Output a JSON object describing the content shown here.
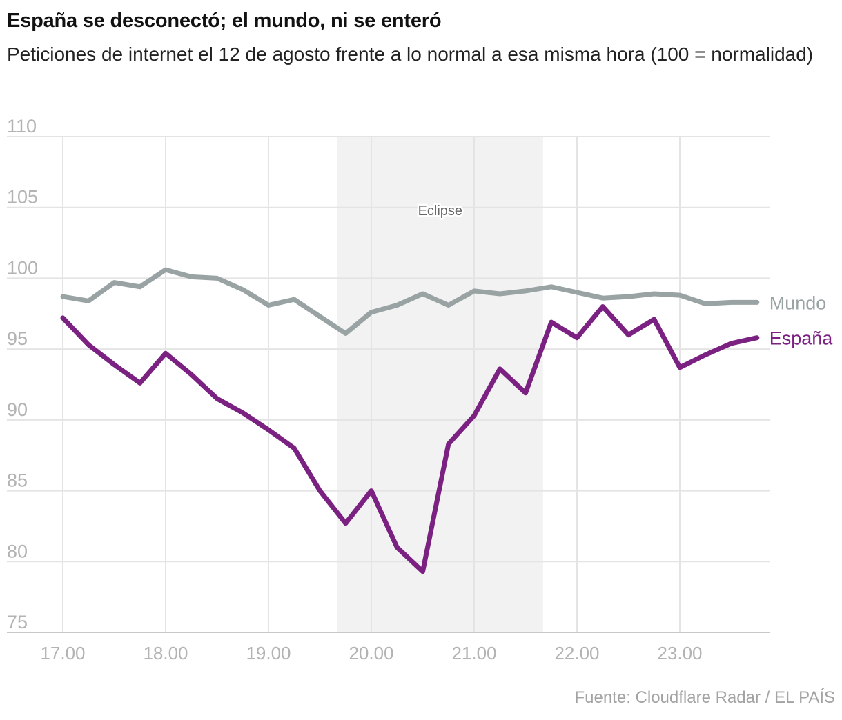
{
  "header": {
    "title": "España se desconectó; el mundo, ni se enteró",
    "subtitle": "Peticiones de internet el 12 de agosto frente a lo normal a esa misma hora (100 = normalidad)"
  },
  "footer": {
    "source": "Fuente: Cloudflare Radar / EL PAÍS"
  },
  "chart_data": {
    "type": "line",
    "title": "España se desconectó; el mundo, ni se enteró",
    "subtitle": "Peticiones de internet el 12 de agosto frente a lo normal a esa misma hora (100 = normalidad)",
    "xlabel": "",
    "ylabel": "",
    "x": [
      17.0,
      17.25,
      17.5,
      17.75,
      18.0,
      18.25,
      18.5,
      18.75,
      19.0,
      19.25,
      19.5,
      19.75,
      20.0,
      20.25,
      20.5,
      20.75,
      21.0,
      21.25,
      21.5,
      21.75,
      22.0,
      22.25,
      22.5,
      22.75,
      23.0,
      23.25,
      23.5,
      23.75
    ],
    "xticks": [
      17,
      18,
      19,
      20,
      21,
      22,
      23
    ],
    "xtick_labels": [
      "17.00",
      "18.00",
      "19.00",
      "20.00",
      "21.00",
      "22.00",
      "23.00"
    ],
    "xlim": [
      16.5,
      23.95
    ],
    "ylim": [
      75,
      110
    ],
    "yticks": [
      75,
      80,
      85,
      90,
      95,
      100,
      105,
      110
    ],
    "ytick_labels": [
      "75",
      "80",
      "85",
      "90",
      "95",
      "100",
      "105",
      "110"
    ],
    "grid": true,
    "series": [
      {
        "name": "Mundo",
        "color": "#9aa3a3",
        "values": [
          98.7,
          98.4,
          99.7,
          99.4,
          100.6,
          100.1,
          100.0,
          99.2,
          98.1,
          98.5,
          97.3,
          96.1,
          97.6,
          98.1,
          98.9,
          98.1,
          99.1,
          98.9,
          99.1,
          99.4,
          99.0,
          98.6,
          98.7,
          98.9,
          98.8,
          98.2,
          98.3,
          98.3
        ]
      },
      {
        "name": "España",
        "color": "#7b2182",
        "values": [
          97.2,
          95.3,
          93.9,
          92.6,
          94.7,
          93.2,
          91.5,
          90.5,
          89.3,
          88.0,
          85.0,
          82.7,
          85.0,
          81.0,
          79.3,
          88.3,
          90.3,
          93.6,
          91.9,
          96.9,
          95.8,
          98.0,
          96.0,
          97.1,
          93.7,
          94.6,
          95.4,
          95.8
        ]
      }
    ],
    "annotations": [
      {
        "type": "shaded_region",
        "x_start": 19.67,
        "x_end": 21.67,
        "label": "Eclipse",
        "color": "#f2f2f2"
      }
    ]
  }
}
